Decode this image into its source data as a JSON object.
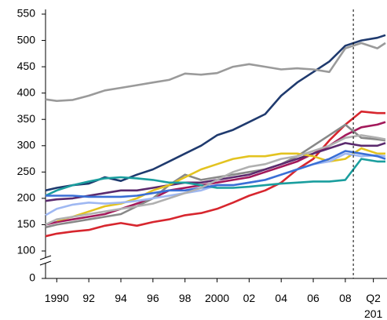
{
  "chart_data": {
    "type": "line",
    "x": [
      1989.3,
      1990,
      1991,
      1992,
      1993,
      1994,
      1995,
      1996,
      1997,
      1998,
      1999,
      2000,
      2001,
      2002,
      2003,
      2004,
      2005,
      2006,
      2007,
      2008,
      2009,
      2010,
      2010.5
    ],
    "xlim": [
      1989.3,
      2010.6
    ],
    "xticks": [
      {
        "value": 1990,
        "label": "1990"
      },
      {
        "value": 1992,
        "label": "92"
      },
      {
        "value": 1994,
        "label": "94"
      },
      {
        "value": 1996,
        "label": "96"
      },
      {
        "value": 1998,
        "label": "98"
      },
      {
        "value": 2000,
        "label": "2000"
      },
      {
        "value": 2002,
        "label": "02"
      },
      {
        "value": 2004,
        "label": "04"
      },
      {
        "value": 2006,
        "label": "06"
      },
      {
        "value": 2008,
        "label": "08"
      },
      {
        "value": 2009.75,
        "label": "Q2\n201"
      }
    ],
    "ylim": [
      0,
      550
    ],
    "yticks": [
      0,
      100,
      150,
      200,
      250,
      300,
      350,
      400,
      450,
      500,
      550
    ],
    "axis_break": [
      0,
      100
    ],
    "vline_x": 2008.5,
    "series": [
      {
        "color": "#1f3a6e",
        "values": [
          215,
          220,
          225,
          228,
          240,
          233,
          245,
          255,
          270,
          285,
          300,
          320,
          330,
          345,
          360,
          395,
          420,
          440,
          460,
          490,
          500,
          505,
          510
        ]
      },
      {
        "color": "#9a9a9a",
        "values": [
          388,
          385,
          387,
          395,
          405,
          410,
          415,
          420,
          425,
          437,
          435,
          438,
          450,
          455,
          450,
          445,
          447,
          445,
          440,
          485,
          495,
          485,
          495
        ]
      },
      {
        "color": "#d7262e",
        "values": [
          128,
          133,
          137,
          140,
          148,
          153,
          148,
          155,
          160,
          168,
          172,
          180,
          192,
          205,
          215,
          230,
          255,
          275,
          310,
          340,
          365,
          362,
          362
        ]
      },
      {
        "color": "#a3195b",
        "values": [
          150,
          155,
          160,
          165,
          170,
          180,
          190,
          200,
          215,
          220,
          225,
          230,
          235,
          240,
          250,
          260,
          270,
          285,
          300,
          320,
          335,
          340,
          345
        ]
      },
      {
        "color": "#888888",
        "values": [
          145,
          150,
          155,
          160,
          165,
          170,
          185,
          200,
          225,
          245,
          235,
          240,
          245,
          250,
          255,
          265,
          280,
          300,
          320,
          340,
          315,
          312,
          310
        ]
      },
      {
        "color": "#5b2a6e",
        "values": [
          195,
          198,
          200,
          205,
          210,
          215,
          215,
          220,
          225,
          230,
          230,
          235,
          240,
          245,
          255,
          265,
          275,
          285,
          295,
          305,
          300,
          300,
          305
        ]
      },
      {
        "color": "#e3c320",
        "values": [
          null,
          158,
          165,
          175,
          185,
          190,
          200,
          215,
          225,
          240,
          255,
          265,
          275,
          280,
          280,
          285,
          285,
          280,
          270,
          275,
          295,
          285,
          285
        ]
      },
      {
        "color": "#9fb8f2",
        "values": [
          168,
          180,
          188,
          192,
          190,
          192,
          195,
          200,
          205,
          210,
          215,
          225,
          225,
          230,
          235,
          245,
          255,
          265,
          270,
          285,
          280,
          282,
          280
        ]
      },
      {
        "color": "#1a9e9e",
        "values": [
          205,
          215,
          225,
          232,
          238,
          240,
          238,
          235,
          230,
          230,
          225,
          220,
          220,
          222,
          225,
          228,
          230,
          232,
          232,
          235,
          275,
          270,
          270
        ]
      },
      {
        "color": "#3a6fd6",
        "values": [
          205,
          205,
          205,
          203,
          203,
          203,
          205,
          210,
          215,
          215,
          220,
          225,
          225,
          230,
          235,
          245,
          255,
          265,
          275,
          290,
          285,
          280,
          275
        ]
      },
      {
        "color": "#b0b0b0",
        "values": [
          150,
          160,
          165,
          170,
          175,
          180,
          185,
          190,
          200,
          210,
          220,
          235,
          250,
          260,
          265,
          275,
          280,
          290,
          300,
          315,
          320,
          315,
          312
        ]
      }
    ]
  }
}
